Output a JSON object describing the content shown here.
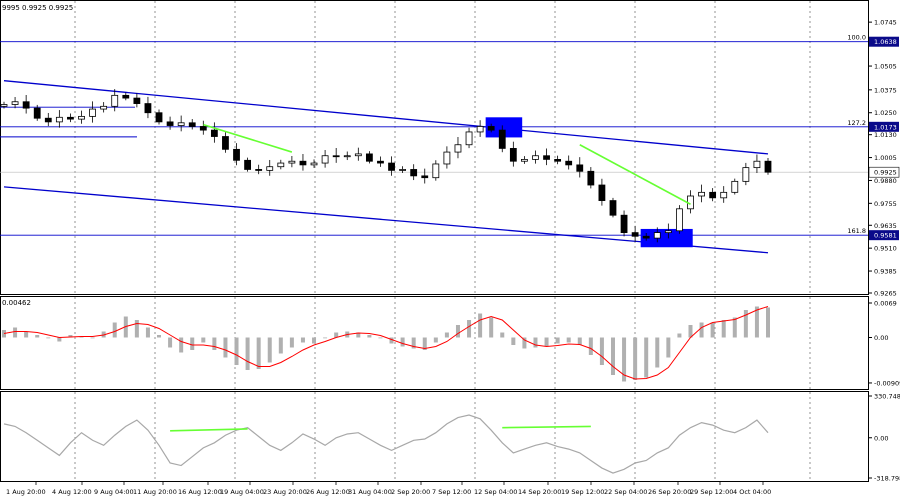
{
  "chart_data": [
    {
      "type": "candlestick",
      "header": "9995 0.9925 0.9925",
      "x_labels": [
        "1 Aug 20:00",
        "4 Aug 12:00",
        "9 Aug 04:00",
        "11 Aug 20:00",
        "16 Aug 12:00",
        "19 Aug 04:00",
        "23 Aug 20:00",
        "26 Aug 12:00",
        "31 Aug 04:00",
        "2 Sep 20:00",
        "7 Sep 12:00",
        "12 Sep 04:00",
        "14 Sep 20:00",
        "19 Sep 12:00",
        "22 Sep 04:00",
        "26 Sep 20:00",
        "29 Sep 12:00",
        "4 Oct 04:00"
      ],
      "y_ticks": [
        1.0745,
        1.0505,
        1.0375,
        1.025,
        1.013,
        1.0005,
        0.988,
        0.9755,
        0.9635,
        0.951,
        0.9385,
        0.9265
      ],
      "ylim": [
        0.9265,
        1.0855
      ],
      "current_price": 0.9925,
      "close_path": [
        1.0295,
        1.031,
        1.0275,
        1.022,
        1.02,
        1.0225,
        1.0215,
        1.023,
        1.027,
        1.0285,
        1.0345,
        1.033,
        1.03,
        1.025,
        1.02,
        1.018,
        1.0195,
        1.0175,
        1.0155,
        1.012,
        1.005,
        0.999,
        0.994,
        0.9935,
        0.9955,
        0.9975,
        0.9985,
        0.9965,
        0.9975,
        1.0015,
        1.001,
        1.0015,
        1.0025,
        0.9985,
        0.9975,
        0.9935,
        0.994,
        0.9905,
        0.9895,
        0.997,
        1.0035,
        1.0075,
        1.0145,
        1.0175,
        1.0155,
        1.0055,
        0.9985,
        0.9995,
        1.0015,
        0.9995,
        0.9985,
        0.9965,
        0.993,
        0.9855,
        0.977,
        0.969,
        0.9595,
        0.9575,
        0.9565,
        0.9595,
        0.9605,
        0.9725,
        0.9795,
        0.9815,
        0.9785,
        0.9815,
        0.9875,
        0.995,
        0.9985,
        0.9925
      ],
      "levels": [
        {
          "label": "100.0",
          "value": 1.0638
        },
        {
          "label": "127.2",
          "value": 1.0173
        },
        {
          "label": "161.8",
          "value": 0.9581
        }
      ],
      "horizontal_lines": [
        1.028,
        1.0118
      ],
      "channel_upper": [
        [
          0,
          1.0425
        ],
        [
          69,
          1.0025
        ]
      ],
      "channel_lower": [
        [
          0,
          0.9845
        ],
        [
          69,
          0.9485
        ]
      ],
      "highlight_boxes": [
        {
          "from": 43.5,
          "to": 46.8,
          "low": 1.0115,
          "high": 1.0225
        },
        {
          "from": 57.5,
          "to": 62.2,
          "low": 0.9515,
          "high": 0.9615
        }
      ],
      "green_lines": [
        [
          [
            18,
            1.0185
          ],
          [
            26,
            1.0035
          ]
        ],
        [
          [
            52,
            1.0075
          ],
          [
            62,
            0.975
          ]
        ]
      ]
    },
    {
      "type": "histogram",
      "header": "0.00462",
      "y_ticks": [
        0.0069,
        0.0,
        -0.00909
      ],
      "ylim": [
        -0.0101,
        0.0077
      ],
      "values": [
        0.0015,
        0.002,
        0.0012,
        0.0005,
        0,
        -0.0008,
        0.0005,
        0.0002,
        0,
        0.0012,
        0.003,
        0.0042,
        0.0035,
        0.002,
        0.0005,
        -0.002,
        -0.003,
        -0.0025,
        -0.001,
        -0.0025,
        -0.004,
        -0.0055,
        -0.0065,
        -0.0063,
        -0.005,
        -0.0032,
        -0.002,
        -0.001,
        -0.0012,
        0,
        0.001,
        0.0012,
        0.001,
        0.0005,
        0,
        -0.0012,
        -0.0018,
        -0.0022,
        -0.0025,
        -0.001,
        0.001,
        0.0025,
        0.0035,
        0.0048,
        0.004,
        0.001,
        -0.0015,
        -0.0022,
        -0.002,
        -0.0018,
        -0.0012,
        -0.001,
        -0.0015,
        -0.0035,
        -0.0055,
        -0.0075,
        -0.0088,
        -0.0085,
        -0.008,
        -0.006,
        -0.004,
        0.0008,
        0.0025,
        0.003,
        0.003,
        0.0035,
        0.004,
        0.0055,
        0.0062,
        0.006
      ],
      "signal": [
        0.0008,
        0.0012,
        0.0012,
        0.001,
        0.0005,
        0,
        0.0001,
        0.0002,
        0.0002,
        0.0005,
        0.0012,
        0.0022,
        0.0028,
        0.0026,
        0.0018,
        0.0005,
        -0.0008,
        -0.0015,
        -0.0015,
        -0.0018,
        -0.0025,
        -0.0035,
        -0.0048,
        -0.0058,
        -0.0058,
        -0.005,
        -0.0038,
        -0.0025,
        -0.0015,
        -0.0008,
        0,
        0.0006,
        0.0009,
        0.0008,
        0.0004,
        -0.0004,
        -0.0012,
        -0.0018,
        -0.0022,
        -0.0018,
        -0.0008,
        0.0008,
        0.0022,
        0.0035,
        0.0042,
        0.0035,
        0.0015,
        -0.0005,
        -0.0015,
        -0.0018,
        -0.0016,
        -0.0013,
        -0.0014,
        -0.0022,
        -0.0038,
        -0.0058,
        -0.0075,
        -0.0083,
        -0.0082,
        -0.0075,
        -0.006,
        -0.003,
        0,
        0.002,
        0.003,
        0.0033,
        0.0036,
        0.0045,
        0.0055,
        0.0062
      ]
    },
    {
      "type": "line",
      "y_ticks": [
        330.7482,
        0.0,
        -318.798
      ],
      "ylim": [
        -318.798,
        330.7482
      ],
      "values": [
        110,
        90,
        40,
        -20,
        -80,
        -140,
        -40,
        40,
        -20,
        -60,
        20,
        90,
        140,
        60,
        -60,
        -200,
        -220,
        -150,
        -80,
        -40,
        20,
        60,
        80,
        10,
        -60,
        -100,
        -40,
        30,
        -10,
        -60,
        0,
        30,
        40,
        -10,
        -60,
        -100,
        -60,
        -20,
        -10,
        40,
        110,
        160,
        180,
        150,
        60,
        -40,
        -120,
        -90,
        -60,
        -40,
        -70,
        -90,
        -120,
        -180,
        -240,
        -280,
        -250,
        -200,
        -180,
        -120,
        -80,
        20,
        80,
        120,
        100,
        60,
        40,
        80,
        140,
        40
      ],
      "green_lines": [
        [
          [
            15,
            55
          ],
          [
            22,
            70
          ]
        ],
        [
          [
            45,
            80
          ],
          [
            53,
            90
          ]
        ]
      ]
    }
  ]
}
